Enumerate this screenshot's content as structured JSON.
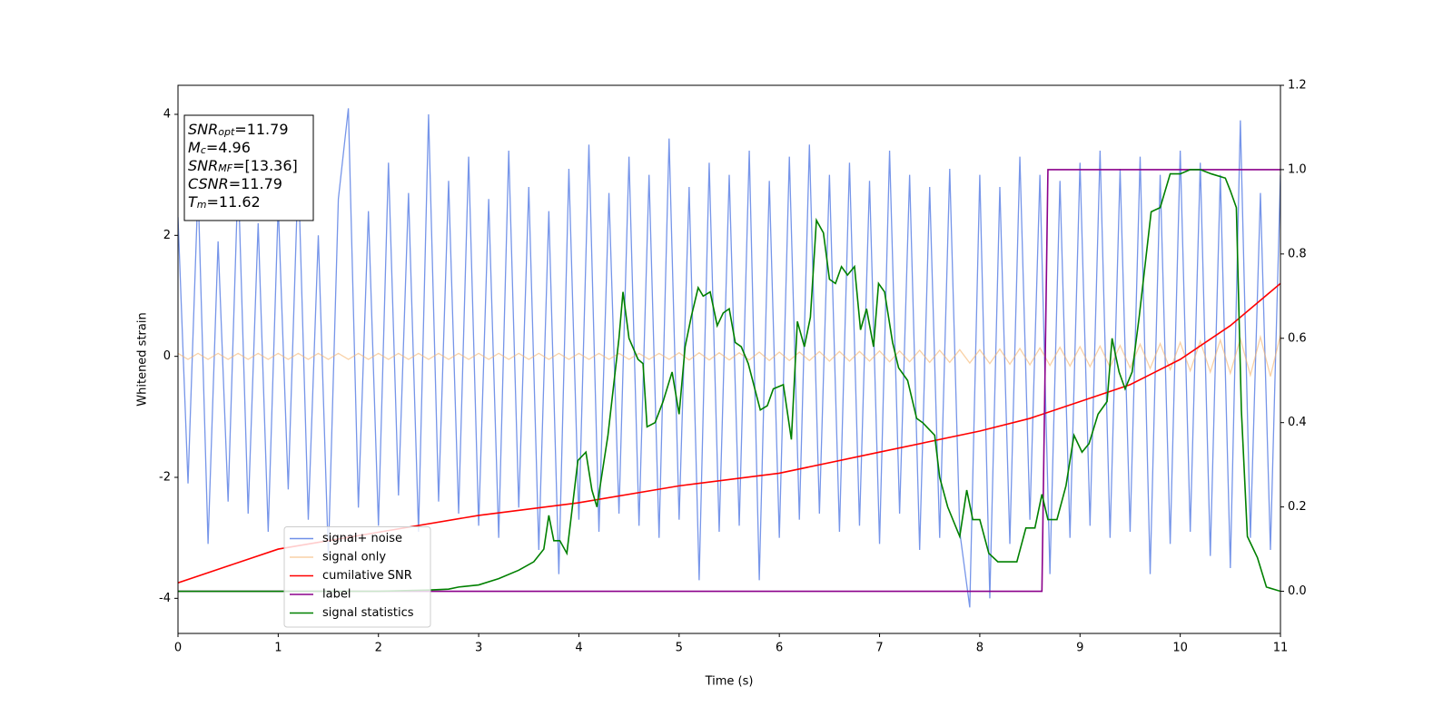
{
  "chart_data": {
    "type": "line",
    "xlabel": "Time (s)",
    "ylabel": "Whitened strain",
    "xlim": [
      0,
      11
    ],
    "ylim": [
      -4.58,
      4.48
    ],
    "y2lim": [
      -0.1,
      1.2
    ],
    "xticks": [
      0,
      1,
      2,
      3,
      4,
      5,
      6,
      7,
      8,
      9,
      10,
      11
    ],
    "yticks": [
      -4,
      -2,
      0,
      2,
      4
    ],
    "y2ticks": [
      {
        "value": 0,
        "label": "0.0"
      },
      0.2,
      0.4,
      0.6,
      0.8,
      {
        "value": 1,
        "label": "1.0"
      },
      1.2
    ],
    "legend_loc": "lower left",
    "annotation": [
      {
        "symbol": "SNR",
        "subscript": "opt",
        "text": "=11.79"
      },
      {
        "symbol": "M",
        "subscript": "c",
        "text": "=4.96"
      },
      {
        "symbol": "SNR",
        "subscript": "MF",
        "text": "=[13.36]"
      },
      {
        "symbol": "CSNR",
        "text": "=11.79"
      },
      {
        "symbol": "T",
        "subscript": "m",
        "text": "=11.62"
      }
    ],
    "series": [
      {
        "name": "signal+ noise",
        "color": "#6f8fe8",
        "x": [
          0,
          0.1,
          0.2,
          0.3,
          0.4,
          0.5,
          0.6,
          0.7,
          0.8,
          0.9,
          1,
          1.1,
          1.2,
          1.3,
          1.4,
          1.5,
          1.6,
          1.7,
          1.8,
          1.9,
          2,
          2.1,
          2.2,
          2.3,
          2.4,
          2.5,
          2.6,
          2.7,
          2.8,
          2.9,
          3,
          3.1,
          3.2,
          3.3,
          3.4,
          3.5,
          3.6,
          3.7,
          3.8,
          3.9,
          4,
          4.1,
          4.2,
          4.3,
          4.4,
          4.5,
          4.6,
          4.7,
          4.8,
          4.9,
          5,
          5.1,
          5.2,
          5.3,
          5.4,
          5.5,
          5.6,
          5.7,
          5.8,
          5.9,
          6,
          6.1,
          6.2,
          6.3,
          6.4,
          6.5,
          6.6,
          6.7,
          6.8,
          6.9,
          7,
          7.1,
          7.2,
          7.3,
          7.4,
          7.5,
          7.6,
          7.7,
          7.8,
          7.9,
          8,
          8.1,
          8.2,
          8.3,
          8.4,
          8.5,
          8.6,
          8.7,
          8.8,
          8.9,
          9,
          9.1,
          9.2,
          9.3,
          9.4,
          9.5,
          9.6,
          9.7,
          9.8,
          9.9,
          10,
          10.1,
          10.2,
          10.3,
          10.4,
          10.5,
          10.6,
          10.7,
          10.8,
          10.9,
          11
        ],
        "values": [
          2.3,
          -2.1,
          2.8,
          -3.1,
          1.9,
          -2.4,
          3.0,
          -2.6,
          2.2,
          -2.9,
          2.5,
          -2.2,
          3.1,
          -2.7,
          2.0,
          -3.3,
          2.6,
          4.1,
          -2.5,
          2.4,
          -2.8,
          3.2,
          -2.3,
          2.7,
          -2.9,
          4.0,
          -2.4,
          2.9,
          -2.6,
          3.3,
          -2.8,
          2.6,
          -3.0,
          3.4,
          -2.5,
          2.8,
          -3.2,
          2.4,
          -3.6,
          3.1,
          -2.7,
          3.5,
          -2.9,
          2.7,
          -2.6,
          3.3,
          -2.8,
          3.0,
          -3.0,
          3.6,
          -2.7,
          2.8,
          -3.7,
          3.2,
          -2.9,
          3.0,
          -2.8,
          3.4,
          -3.7,
          2.9,
          -3.0,
          3.3,
          -2.7,
          3.5,
          -2.6,
          3.0,
          -2.9,
          3.2,
          -2.8,
          2.9,
          -3.1,
          3.4,
          -2.6,
          3.0,
          -3.2,
          2.8,
          -3.0,
          3.1,
          -2.9,
          -4.15,
          3.0,
          -4.0,
          2.8,
          -3.1,
          3.3,
          -2.7,
          3.0,
          -3.6,
          2.9,
          -3.0,
          3.2,
          -2.8,
          3.4,
          -3.0,
          3.1,
          -2.9,
          3.3,
          -3.6,
          3.0,
          -3.1,
          3.4,
          -2.9,
          3.2,
          -3.3,
          3.0,
          -3.5,
          3.9,
          -3.0,
          2.7,
          -3.2,
          3.0
        ]
      },
      {
        "name": "signal only",
        "color": "#f5b26b",
        "x": [
          0,
          0.1,
          0.2,
          0.3,
          0.4,
          0.5,
          0.6,
          0.7,
          0.8,
          0.9,
          1,
          1.1,
          1.2,
          1.3,
          1.4,
          1.5,
          1.6,
          1.7,
          1.8,
          1.9,
          2,
          2.1,
          2.2,
          2.3,
          2.4,
          2.5,
          2.6,
          2.7,
          2.8,
          2.9,
          3,
          3.1,
          3.2,
          3.3,
          3.4,
          3.5,
          3.6,
          3.7,
          3.8,
          3.9,
          4,
          4.1,
          4.2,
          4.3,
          4.4,
          4.5,
          4.6,
          4.7,
          4.8,
          4.9,
          5,
          5.1,
          5.2,
          5.3,
          5.4,
          5.5,
          5.6,
          5.7,
          5.8,
          5.9,
          6,
          6.1,
          6.2,
          6.3,
          6.4,
          6.5,
          6.6,
          6.7,
          6.8,
          6.9,
          7,
          7.1,
          7.2,
          7.3,
          7.4,
          7.5,
          7.6,
          7.7,
          7.8,
          7.9,
          8,
          8.1,
          8.2,
          8.3,
          8.4,
          8.5,
          8.6,
          8.7,
          8.8,
          8.9,
          9,
          9.1,
          9.2,
          9.3,
          9.4,
          9.5,
          9.6,
          9.7,
          9.8,
          9.9,
          10,
          10.1,
          10.2,
          10.3,
          10.4,
          10.5,
          10.6,
          10.7,
          10.8,
          10.9,
          11
        ],
        "values": [
          0.05,
          -0.05,
          0.05,
          -0.05,
          0.05,
          -0.05,
          0.05,
          -0.05,
          0.05,
          -0.05,
          0.05,
          -0.05,
          0.05,
          -0.05,
          0.05,
          -0.05,
          0.05,
          -0.05,
          0.05,
          -0.05,
          0.05,
          -0.05,
          0.05,
          -0.05,
          0.05,
          -0.05,
          0.05,
          -0.05,
          0.05,
          -0.05,
          0.05,
          -0.05,
          0.05,
          -0.05,
          0.05,
          -0.05,
          0.05,
          -0.05,
          0.05,
          -0.05,
          0.05,
          -0.05,
          0.05,
          -0.05,
          0.05,
          -0.05,
          0.05,
          -0.05,
          0.05,
          -0.05,
          0.06,
          -0.06,
          0.06,
          -0.06,
          0.06,
          -0.06,
          0.06,
          -0.06,
          0.07,
          -0.07,
          0.07,
          -0.07,
          0.07,
          -0.07,
          0.08,
          -0.08,
          0.08,
          -0.08,
          0.08,
          -0.08,
          0.09,
          -0.09,
          0.09,
          -0.09,
          0.1,
          -0.1,
          0.1,
          -0.1,
          0.11,
          -0.11,
          0.11,
          -0.12,
          0.12,
          -0.13,
          0.13,
          -0.14,
          0.14,
          -0.15,
          0.15,
          -0.16,
          0.16,
          -0.17,
          0.17,
          -0.18,
          0.18,
          -0.19,
          0.2,
          -0.2,
          0.21,
          -0.22,
          0.23,
          -0.24,
          0.25,
          -0.26,
          0.27,
          -0.28,
          0.29,
          -0.31,
          0.32,
          -0.33,
          0.35
        ]
      },
      {
        "name": "cumilative SNR",
        "color": "#ff0000",
        "axis": "y2",
        "x": [
          0,
          0.5,
          1,
          2,
          3,
          4,
          5,
          6,
          7,
          8,
          8.5,
          9,
          9.5,
          10,
          10.5,
          11
        ],
        "values": [
          0.02,
          0.06,
          0.1,
          0.14,
          0.18,
          0.21,
          0.25,
          0.28,
          0.33,
          0.38,
          0.41,
          0.45,
          0.49,
          0.55,
          0.63,
          0.73
        ]
      },
      {
        "name": "label",
        "color": "#8b008b",
        "axis": "y2",
        "x": [
          0,
          8.62,
          8.68,
          11
        ],
        "values": [
          0,
          0,
          1,
          1
        ]
      },
      {
        "name": "signal statistics",
        "color": "#008000",
        "axis": "y2",
        "x": [
          0,
          1,
          2,
          2.5,
          2.7,
          2.8,
          3,
          3.2,
          3.4,
          3.55,
          3.65,
          3.7,
          3.75,
          3.81,
          3.88,
          3.99,
          4.07,
          4.13,
          4.18,
          4.29,
          4.4,
          4.44,
          4.5,
          4.59,
          4.64,
          4.68,
          4.76,
          4.84,
          4.93,
          5,
          5.06,
          5.12,
          5.19,
          5.24,
          5.31,
          5.38,
          5.44,
          5.5,
          5.56,
          5.62,
          5.69,
          5.81,
          5.88,
          5.94,
          6.04,
          6.12,
          6.18,
          6.25,
          6.31,
          6.37,
          6.44,
          6.5,
          6.56,
          6.62,
          6.68,
          6.75,
          6.81,
          6.87,
          6.94,
          6.99,
          7.05,
          7.13,
          7.19,
          7.28,
          7.37,
          7.43,
          7.55,
          7.6,
          7.68,
          7.8,
          7.87,
          7.93,
          8,
          8.09,
          8.18,
          8.28,
          8.37,
          8.46,
          8.55,
          8.62,
          8.68,
          8.77,
          8.86,
          8.94,
          9.02,
          9.09,
          9.18,
          9.27,
          9.32,
          9.39,
          9.45,
          9.52,
          9.59,
          9.71,
          9.8,
          9.9,
          10,
          10.1,
          10.2,
          10.31,
          10.45,
          10.5,
          10.56,
          10.61,
          10.67,
          10.77,
          10.86,
          11
        ],
        "values": [
          0,
          0,
          0,
          0.003,
          0.005,
          0.01,
          0.015,
          0.03,
          0.05,
          0.07,
          0.1,
          0.18,
          0.12,
          0.12,
          0.09,
          0.31,
          0.33,
          0.24,
          0.2,
          0.37,
          0.6,
          0.71,
          0.6,
          0.55,
          0.54,
          0.39,
          0.4,
          0.45,
          0.52,
          0.42,
          0.58,
          0.65,
          0.72,
          0.7,
          0.71,
          0.63,
          0.66,
          0.67,
          0.59,
          0.58,
          0.54,
          0.43,
          0.44,
          0.48,
          0.49,
          0.36,
          0.64,
          0.58,
          0.65,
          0.88,
          0.85,
          0.74,
          0.73,
          0.77,
          0.75,
          0.77,
          0.62,
          0.67,
          0.58,
          0.73,
          0.71,
          0.59,
          0.53,
          0.5,
          0.41,
          0.4,
          0.37,
          0.27,
          0.2,
          0.13,
          0.24,
          0.17,
          0.17,
          0.09,
          0.07,
          0.07,
          0.07,
          0.15,
          0.15,
          0.23,
          0.17,
          0.17,
          0.25,
          0.37,
          0.33,
          0.35,
          0.42,
          0.45,
          0.6,
          0.52,
          0.48,
          0.52,
          0.65,
          0.9,
          0.91,
          0.99,
          0.99,
          1,
          1,
          0.99,
          0.98,
          0.95,
          0.91,
          0.43,
          0.13,
          0.08,
          0.01,
          0
        ]
      }
    ]
  }
}
